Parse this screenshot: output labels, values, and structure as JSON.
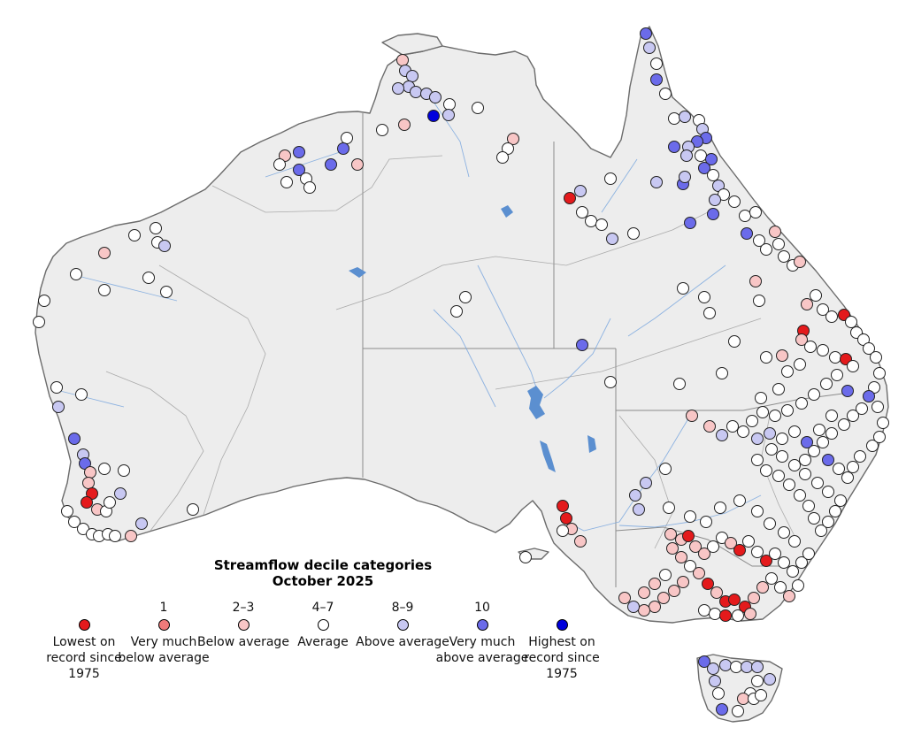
{
  "map": {
    "title_line1": "Streamflow decile categories",
    "title_line2": "October 2025"
  },
  "legend": [
    {
      "range": "",
      "label": "Lowest on record since 1975",
      "color": "#e41a1c"
    },
    {
      "range": "1",
      "label": "Very much below average",
      "color": "#f07a7a"
    },
    {
      "range": "2–3",
      "label": "Below average",
      "color": "#f8c6c6"
    },
    {
      "range": "4–7",
      "label": "Average",
      "color": "#ffffff"
    },
    {
      "range": "8–9",
      "label": "Above average",
      "color": "#c8c8f2"
    },
    {
      "range": "10",
      "label": "Very much above average",
      "color": "#6b6bea"
    },
    {
      "range": "",
      "label": "Highest on record since 1975",
      "color": "#0000dd"
    }
  ],
  "colors": {
    "land": "#ededed",
    "coastline": "#6b6b6b",
    "state_border": "#8c8c8c",
    "rivers": "#7aa7de",
    "lakes": "#5b8fd0"
  }
}
